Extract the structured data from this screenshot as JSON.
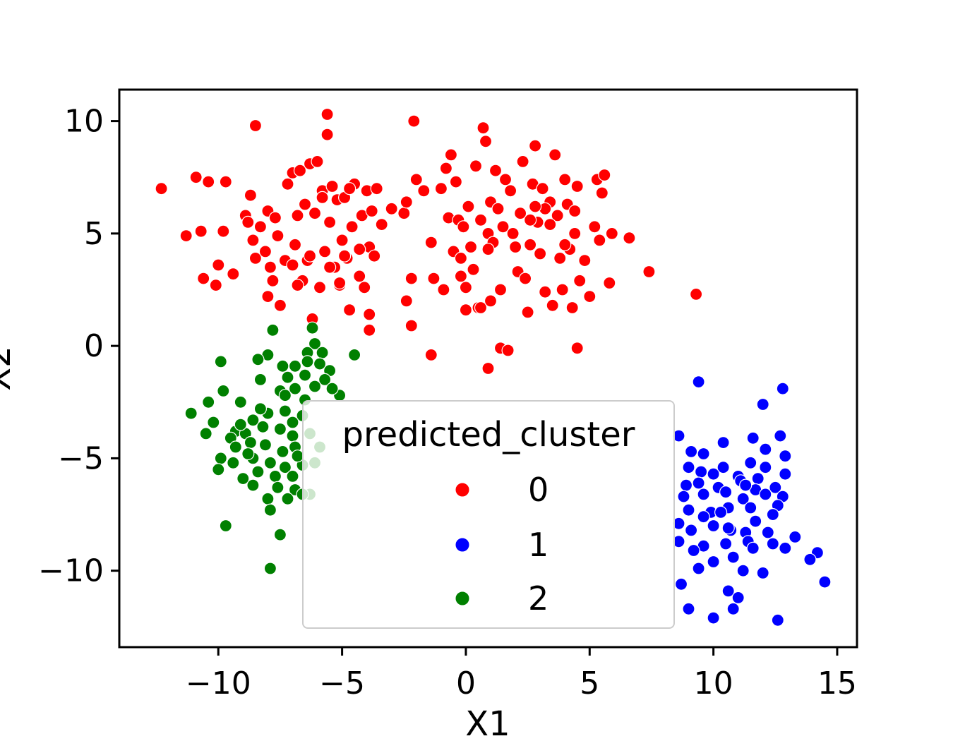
{
  "chart_data": {
    "type": "scatter",
    "xlabel": "X1",
    "ylabel": "X2",
    "xlim": [
      -14,
      15.8
    ],
    "ylim": [
      -13.4,
      11.4
    ],
    "xticks": [
      -10,
      -5,
      0,
      5,
      10,
      15
    ],
    "yticks": [
      -10,
      -5,
      0,
      5,
      10
    ],
    "xtick_labels": [
      "−10",
      "−5",
      "0",
      "5",
      "10",
      "15"
    ],
    "ytick_labels": [
      "−10",
      "−5",
      "0",
      "5",
      "10"
    ],
    "legend": {
      "title": "predicted_cluster",
      "placement": "lower-center",
      "entries": [
        "0",
        "1",
        "2"
      ]
    },
    "series": [
      {
        "name": "0",
        "color": "#ff0000",
        "points": [
          [
            -12.3,
            7.0
          ],
          [
            -11.3,
            4.9
          ],
          [
            -10.9,
            7.5
          ],
          [
            -10.7,
            5.1
          ],
          [
            -10.6,
            3.0
          ],
          [
            -10.4,
            7.3
          ],
          [
            -10.1,
            2.7
          ],
          [
            -10.0,
            3.6
          ],
          [
            -9.8,
            5.1
          ],
          [
            -9.7,
            7.3
          ],
          [
            -9.4,
            3.2
          ],
          [
            -8.9,
            5.8
          ],
          [
            -8.8,
            5.5
          ],
          [
            -8.7,
            6.7
          ],
          [
            -8.6,
            4.7
          ],
          [
            -8.5,
            9.8
          ],
          [
            -8.5,
            3.9
          ],
          [
            -8.3,
            5.3
          ],
          [
            -8.1,
            4.2
          ],
          [
            -8.0,
            6.0
          ],
          [
            -7.9,
            3.5
          ],
          [
            -7.8,
            2.9
          ],
          [
            -7.7,
            5.7
          ],
          [
            -7.6,
            4.9
          ],
          [
            -7.5,
            1.8
          ],
          [
            -7.3,
            3.8
          ],
          [
            -7.2,
            7.2
          ],
          [
            -7.0,
            7.7
          ],
          [
            -6.9,
            4.5
          ],
          [
            -6.8,
            5.8
          ],
          [
            -6.7,
            7.8
          ],
          [
            -6.6,
            2.9
          ],
          [
            -6.5,
            6.3
          ],
          [
            -6.4,
            3.8
          ],
          [
            -6.3,
            8.1
          ],
          [
            -6.2,
            1.2
          ],
          [
            -6.1,
            5.9
          ],
          [
            -6.0,
            8.2
          ],
          [
            -5.9,
            2.6
          ],
          [
            -5.8,
            6.9
          ],
          [
            -5.7,
            4.2
          ],
          [
            -5.6,
            10.3
          ],
          [
            -5.6,
            9.4
          ],
          [
            -5.5,
            5.5
          ],
          [
            -5.4,
            7.1
          ],
          [
            -5.3,
            3.5
          ],
          [
            -5.2,
            6.5
          ],
          [
            -5.1,
            2.7
          ],
          [
            -5.0,
            4.7
          ],
          [
            -4.9,
            6.6
          ],
          [
            -4.8,
            3.9
          ],
          [
            -4.7,
            1.6
          ],
          [
            -4.6,
            5.3
          ],
          [
            -4.5,
            7.2
          ],
          [
            -4.3,
            3.1
          ],
          [
            -4.2,
            5.8
          ],
          [
            -4.1,
            2.6
          ],
          [
            -4.0,
            6.9
          ],
          [
            -3.9,
            4.4
          ],
          [
            -3.9,
            1.4
          ],
          [
            -3.9,
            0.7
          ],
          [
            -3.8,
            6.0
          ],
          [
            -3.7,
            4.0
          ],
          [
            -3.6,
            7.0
          ],
          [
            -3.4,
            5.4
          ],
          [
            -2.5,
            5.9
          ],
          [
            -2.4,
            6.4
          ],
          [
            -2.4,
            2.0
          ],
          [
            -2.2,
            3.0
          ],
          [
            -2.2,
            0.9
          ],
          [
            -2.1,
            10.0
          ],
          [
            -2.0,
            7.4
          ],
          [
            -1.7,
            6.9
          ],
          [
            -1.4,
            4.6
          ],
          [
            -1.3,
            3.0
          ],
          [
            -1.0,
            7.0
          ],
          [
            -0.9,
            2.5
          ],
          [
            -0.8,
            7.9
          ],
          [
            -0.7,
            5.7
          ],
          [
            -0.6,
            8.5
          ],
          [
            -0.5,
            4.2
          ],
          [
            -0.4,
            7.3
          ],
          [
            -0.3,
            5.6
          ],
          [
            -0.2,
            3.9
          ],
          [
            0.0,
            2.6
          ],
          [
            0.0,
            1.6
          ],
          [
            0.1,
            6.2
          ],
          [
            0.2,
            4.4
          ],
          [
            0.3,
            3.4
          ],
          [
            0.4,
            8.0
          ],
          [
            0.5,
            1.7
          ],
          [
            0.6,
            5.6
          ],
          [
            0.7,
            9.7
          ],
          [
            0.8,
            9.1
          ],
          [
            0.9,
            5.0
          ],
          [
            1.0,
            6.4
          ],
          [
            1.1,
            4.6
          ],
          [
            1.2,
            7.8
          ],
          [
            1.3,
            6.1
          ],
          [
            1.4,
            2.5
          ],
          [
            1.5,
            5.3
          ],
          [
            1.6,
            7.4
          ],
          [
            1.8,
            6.9
          ],
          [
            2.0,
            4.4
          ],
          [
            2.1,
            3.3
          ],
          [
            2.2,
            5.9
          ],
          [
            2.3,
            8.2
          ],
          [
            2.4,
            3.0
          ],
          [
            2.5,
            1.5
          ],
          [
            2.6,
            4.5
          ],
          [
            2.7,
            7.2
          ],
          [
            2.8,
            8.9
          ],
          [
            2.9,
            5.5
          ],
          [
            3.0,
            4.1
          ],
          [
            3.1,
            7.0
          ],
          [
            3.2,
            2.4
          ],
          [
            3.4,
            6.4
          ],
          [
            3.5,
            1.8
          ],
          [
            3.6,
            8.5
          ],
          [
            3.7,
            5.8
          ],
          [
            3.8,
            3.9
          ],
          [
            3.9,
            2.5
          ],
          [
            4.0,
            7.4
          ],
          [
            4.1,
            6.3
          ],
          [
            4.2,
            4.3
          ],
          [
            4.3,
            1.7
          ],
          [
            4.4,
            5.0
          ],
          [
            4.5,
            7.1
          ],
          [
            4.6,
            2.9
          ],
          [
            4.8,
            3.8
          ],
          [
            5.0,
            2.2
          ],
          [
            5.2,
            5.3
          ],
          [
            5.3,
            7.4
          ],
          [
            5.4,
            4.7
          ],
          [
            5.5,
            6.8
          ],
          [
            5.6,
            7.6
          ],
          [
            5.8,
            2.8
          ],
          [
            5.9,
            5.0
          ],
          [
            6.6,
            4.8
          ],
          [
            7.4,
            3.3
          ],
          [
            9.3,
            2.3
          ],
          [
            0.9,
            -1.0
          ],
          [
            1.4,
            -0.1
          ],
          [
            4.5,
            -0.1
          ],
          [
            0.6,
            1.7
          ],
          [
            1.7,
            -0.2
          ],
          [
            -1.4,
            -0.4
          ],
          [
            -8.0,
            2.2
          ],
          [
            -7.0,
            3.6
          ],
          [
            -6.3,
            4.0
          ],
          [
            -5.8,
            6.6
          ],
          [
            -5.5,
            3.5
          ],
          [
            -5.1,
            2.8
          ],
          [
            -4.7,
            7.0
          ],
          [
            -4.3,
            4.3
          ],
          [
            -4.9,
            4.0
          ],
          [
            -6.8,
            2.7
          ],
          [
            -3.0,
            6.1
          ],
          [
            2.6,
            5.6
          ],
          [
            3.2,
            6.1
          ],
          [
            0.9,
            4.3
          ],
          [
            -0.1,
            5.3
          ],
          [
            1.9,
            5.0
          ],
          [
            2.8,
            6.2
          ],
          [
            3.4,
            5.4
          ],
          [
            4.0,
            4.5
          ],
          [
            4.4,
            6.0
          ],
          [
            -0.2,
            3.1
          ],
          [
            1.0,
            2.0
          ]
        ]
      },
      {
        "name": "1",
        "color": "#0000ff",
        "points": [
          [
            9.4,
            -1.6
          ],
          [
            12.8,
            -1.9
          ],
          [
            12.0,
            -2.6
          ],
          [
            8.6,
            -4.0
          ],
          [
            10.4,
            -4.3
          ],
          [
            11.6,
            -4.1
          ],
          [
            12.7,
            -4.0
          ],
          [
            9.1,
            -4.7
          ],
          [
            9.6,
            -4.8
          ],
          [
            12.1,
            -4.6
          ],
          [
            12.9,
            -4.9
          ],
          [
            9.0,
            -5.4
          ],
          [
            10.4,
            -5.4
          ],
          [
            11.5,
            -5.2
          ],
          [
            12.1,
            -5.4
          ],
          [
            9.5,
            -5.6
          ],
          [
            10.0,
            -5.7
          ],
          [
            11.0,
            -5.8
          ],
          [
            11.8,
            -5.9
          ],
          [
            12.9,
            -5.7
          ],
          [
            8.9,
            -6.2
          ],
          [
            9.4,
            -6.1
          ],
          [
            10.2,
            -6.3
          ],
          [
            11.1,
            -6.0
          ],
          [
            11.7,
            -6.4
          ],
          [
            12.5,
            -6.3
          ],
          [
            8.8,
            -6.7
          ],
          [
            9.6,
            -6.6
          ],
          [
            10.5,
            -6.5
          ],
          [
            11.2,
            -6.8
          ],
          [
            12.1,
            -6.6
          ],
          [
            12.8,
            -6.7
          ],
          [
            9.0,
            -7.3
          ],
          [
            9.9,
            -7.4
          ],
          [
            10.6,
            -7.2
          ],
          [
            11.5,
            -7.2
          ],
          [
            12.6,
            -7.1
          ],
          [
            8.6,
            -7.9
          ],
          [
            9.6,
            -7.6
          ],
          [
            10.3,
            -7.4
          ],
          [
            11.7,
            -7.8
          ],
          [
            9.1,
            -8.2
          ],
          [
            10.0,
            -8.0
          ],
          [
            10.7,
            -8.2
          ],
          [
            11.3,
            -8.3
          ],
          [
            12.2,
            -8.3
          ],
          [
            13.3,
            -8.5
          ],
          [
            8.6,
            -8.7
          ],
          [
            9.6,
            -8.9
          ],
          [
            10.5,
            -8.8
          ],
          [
            11.4,
            -8.7
          ],
          [
            12.4,
            -8.8
          ],
          [
            9.2,
            -9.1
          ],
          [
            10.0,
            -9.6
          ],
          [
            10.8,
            -9.4
          ],
          [
            11.6,
            -9.0
          ],
          [
            12.9,
            -9.0
          ],
          [
            14.2,
            -9.2
          ],
          [
            9.4,
            -9.9
          ],
          [
            11.2,
            -10.0
          ],
          [
            12.0,
            -10.1
          ],
          [
            13.9,
            -9.5
          ],
          [
            8.7,
            -10.6
          ],
          [
            10.6,
            -10.9
          ],
          [
            11.0,
            -11.2
          ],
          [
            14.5,
            -10.5
          ],
          [
            9.0,
            -11.7
          ],
          [
            10.0,
            -12.1
          ],
          [
            10.8,
            -11.7
          ],
          [
            12.6,
            -12.2
          ],
          [
            11.3,
            -6.2
          ],
          [
            10.6,
            -8.1
          ],
          [
            12.4,
            -7.5
          ]
        ]
      },
      {
        "name": "2",
        "color": "#008000",
        "points": [
          [
            -7.8,
            0.7
          ],
          [
            -6.2,
            0.8
          ],
          [
            -6.1,
            0.1
          ],
          [
            -8.0,
            -0.4
          ],
          [
            -6.4,
            -0.3
          ],
          [
            -5.8,
            -0.3
          ],
          [
            -4.5,
            -0.4
          ],
          [
            -9.9,
            -0.7
          ],
          [
            -8.4,
            -0.6
          ],
          [
            -7.4,
            -0.9
          ],
          [
            -6.9,
            -0.9
          ],
          [
            -6.4,
            -0.7
          ],
          [
            -5.9,
            -0.8
          ],
          [
            -5.5,
            -1.1
          ],
          [
            -8.3,
            -1.5
          ],
          [
            -7.2,
            -1.4
          ],
          [
            -6.5,
            -1.3
          ],
          [
            -5.7,
            -1.5
          ],
          [
            -9.8,
            -2.0
          ],
          [
            -7.5,
            -2.0
          ],
          [
            -6.9,
            -1.9
          ],
          [
            -6.1,
            -1.8
          ],
          [
            -5.1,
            -2.2
          ],
          [
            -10.4,
            -2.5
          ],
          [
            -9.1,
            -2.5
          ],
          [
            -7.3,
            -2.2
          ],
          [
            -6.5,
            -2.4
          ],
          [
            -11.1,
            -3.0
          ],
          [
            -10.2,
            -3.4
          ],
          [
            -9.3,
            -3.8
          ],
          [
            -8.6,
            -3.3
          ],
          [
            -8.0,
            -3.0
          ],
          [
            -7.3,
            -2.9
          ],
          [
            -6.6,
            -3.1
          ],
          [
            -10.5,
            -3.9
          ],
          [
            -9.5,
            -4.1
          ],
          [
            -8.9,
            -3.9
          ],
          [
            -8.2,
            -3.6
          ],
          [
            -7.5,
            -3.7
          ],
          [
            -7.0,
            -4.0
          ],
          [
            -6.3,
            -3.9
          ],
          [
            -9.3,
            -4.5
          ],
          [
            -8.7,
            -4.3
          ],
          [
            -8.1,
            -4.4
          ],
          [
            -7.4,
            -4.7
          ],
          [
            -6.9,
            -4.5
          ],
          [
            -9.9,
            -5.0
          ],
          [
            -9.4,
            -5.2
          ],
          [
            -8.6,
            -5.0
          ],
          [
            -7.9,
            -5.2
          ],
          [
            -7.3,
            -5.4
          ],
          [
            -6.6,
            -5.3
          ],
          [
            -6.1,
            -5.2
          ],
          [
            -10.0,
            -5.5
          ],
          [
            -9.0,
            -5.9
          ],
          [
            -8.4,
            -5.6
          ],
          [
            -7.7,
            -5.8
          ],
          [
            -7.0,
            -5.8
          ],
          [
            -8.6,
            -6.2
          ],
          [
            -7.6,
            -6.3
          ],
          [
            -6.9,
            -6.4
          ],
          [
            -6.3,
            -6.6
          ],
          [
            -8.0,
            -6.8
          ],
          [
            -7.2,
            -6.8
          ],
          [
            -6.6,
            -6.6
          ],
          [
            -7.9,
            -7.3
          ],
          [
            -9.7,
            -8.0
          ],
          [
            -7.5,
            -8.4
          ],
          [
            -7.9,
            -9.9
          ],
          [
            -8.8,
            -4.8
          ],
          [
            -9.1,
            -3.5
          ],
          [
            -7.0,
            -3.4
          ],
          [
            -6.8,
            -4.9
          ],
          [
            -5.9,
            -4.5
          ],
          [
            -8.3,
            -2.8
          ],
          [
            -5.4,
            -1.9
          ]
        ]
      }
    ]
  }
}
